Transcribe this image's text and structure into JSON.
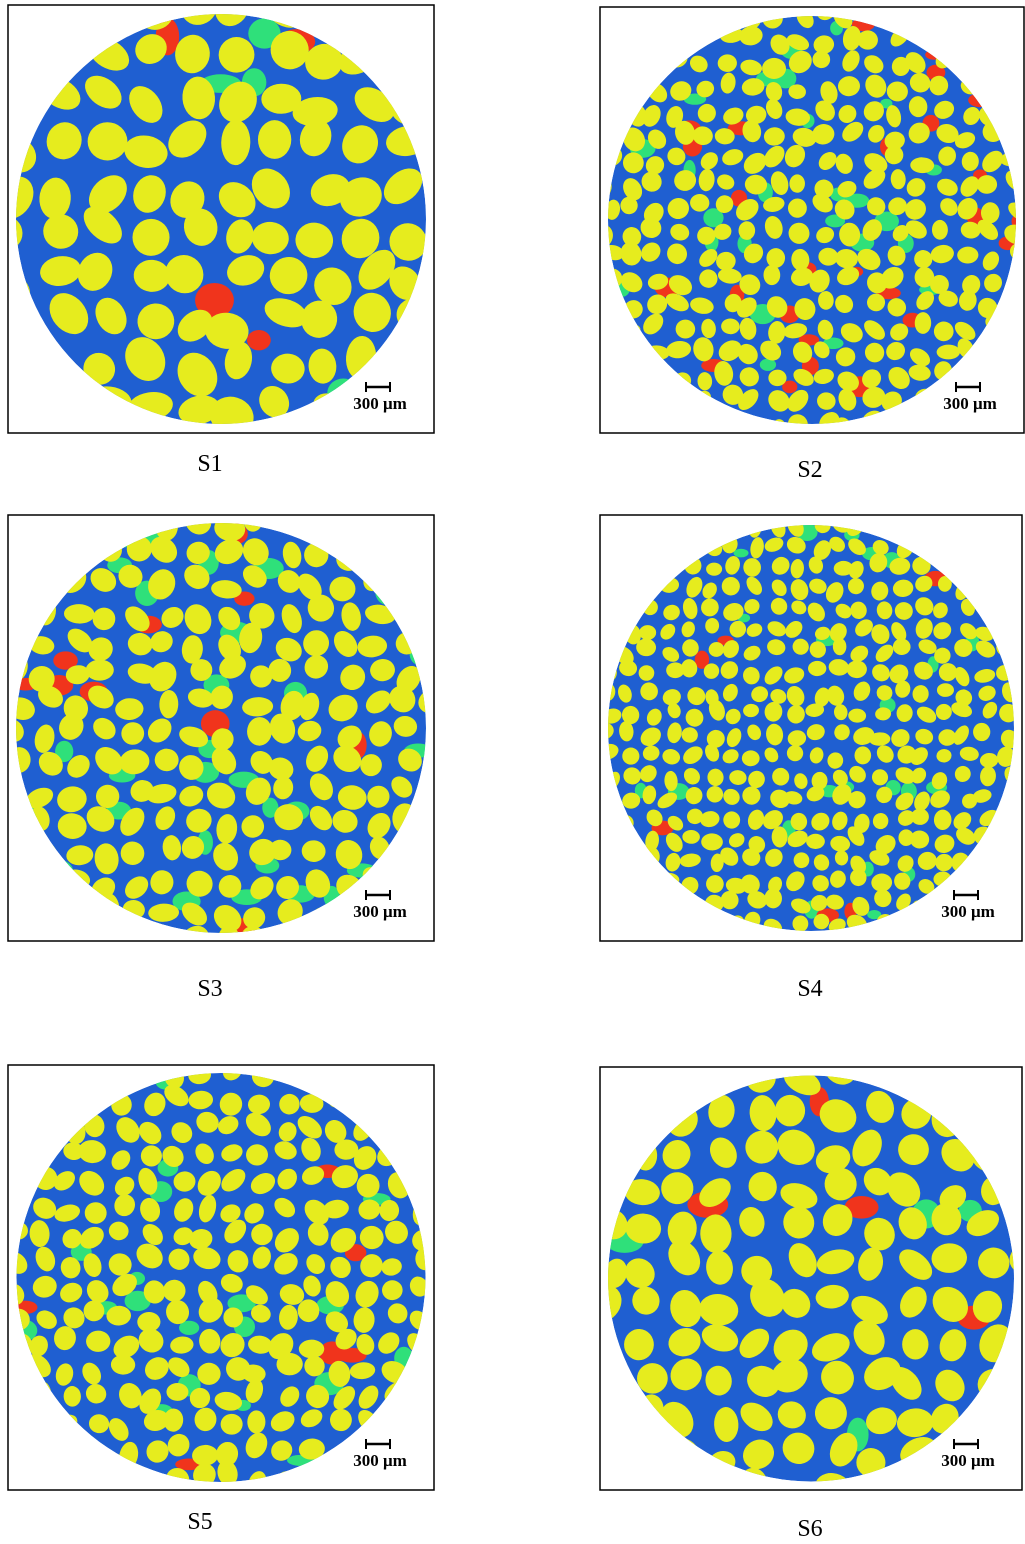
{
  "panels": [
    {
      "label": "S1",
      "scale_bar": "300 μm"
    },
    {
      "label": "S2",
      "scale_bar": "300 μm"
    },
    {
      "label": "S3",
      "scale_bar": "300 μm"
    },
    {
      "label": "S4",
      "scale_bar": "300 μm"
    },
    {
      "label": "S5",
      "scale_bar": "300 μm"
    },
    {
      "label": "S6",
      "scale_bar": "300 μm"
    }
  ]
}
